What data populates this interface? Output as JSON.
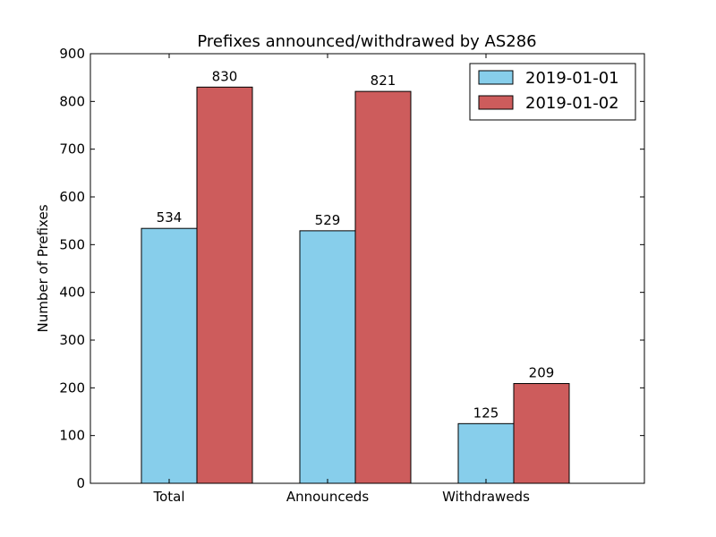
{
  "chart_data": {
    "type": "bar",
    "title": "Prefixes announced/withdrawed by AS286",
    "xlabel": "",
    "ylabel": "Number of Prefixes",
    "categories": [
      "Total",
      "Announceds",
      "Withdraweds"
    ],
    "series": [
      {
        "name": "2019-01-01",
        "color": "#87ceeb",
        "values": [
          534,
          529,
          125
        ]
      },
      {
        "name": "2019-01-02",
        "color": "#cd5c5c",
        "values": [
          830,
          821,
          209
        ]
      }
    ],
    "ylim": [
      0,
      900
    ],
    "yticks": [
      "0",
      "100",
      "200",
      "300",
      "400",
      "500",
      "600",
      "700",
      "800",
      "900"
    ],
    "grid": false,
    "legend_position": "top-right",
    "data_labels": true
  }
}
